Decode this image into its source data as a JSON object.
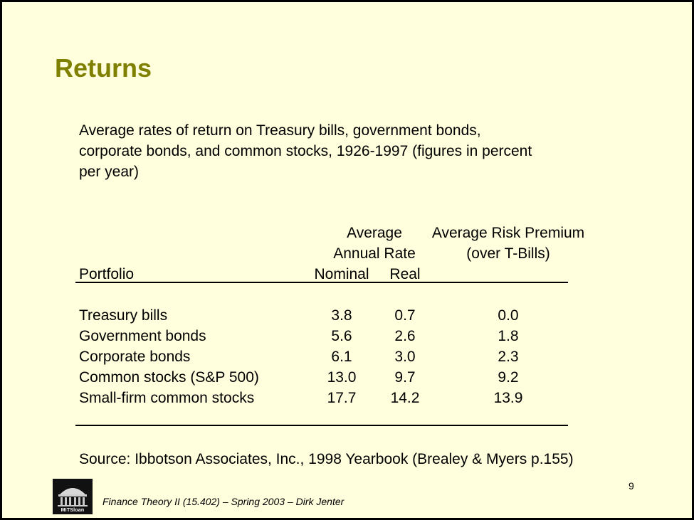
{
  "slide": {
    "title": "Returns",
    "intro": "Average rates of return on Treasury bills, government bonds, corporate bonds, and common stocks, 1926-1997 (figures in percent per year)",
    "table": {
      "header_average": "Average",
      "header_annual_rate": "Annual Rate",
      "header_risk_premium": "Average Risk Premium",
      "header_over_tbills": "(over T-Bills)",
      "header_portfolio": "Portfolio",
      "header_nominal": "Nominal",
      "header_real": "Real",
      "rows": [
        {
          "portfolio": "Treasury bills",
          "nominal": "3.8",
          "real": "0.7",
          "premium": "0.0"
        },
        {
          "portfolio": "Government bonds",
          "nominal": "5.6",
          "real": "2.6",
          "premium": "1.8"
        },
        {
          "portfolio": "Corporate bonds",
          "nominal": "6.1",
          "real": "3.0",
          "premium": "2.3"
        },
        {
          "portfolio": "Common stocks (S&P 500)",
          "nominal": "13.0",
          "real": "9.7",
          "premium": "9.2"
        },
        {
          "portfolio": "Small-firm common stocks",
          "nominal": "17.7",
          "real": "14.2",
          "premium": "13.9"
        }
      ]
    },
    "source": "Source: Ibbotson Associates, Inc., 1998 Yearbook (Brealey & Myers p.155)",
    "page_number": "9",
    "footer": "Finance Theory II (15.402) – Spring 2003 – Dirk Jenter",
    "logo_text": "MITSloan"
  },
  "colors": {
    "background": "#ffffdd",
    "title": "#808000",
    "border": "#000000"
  }
}
